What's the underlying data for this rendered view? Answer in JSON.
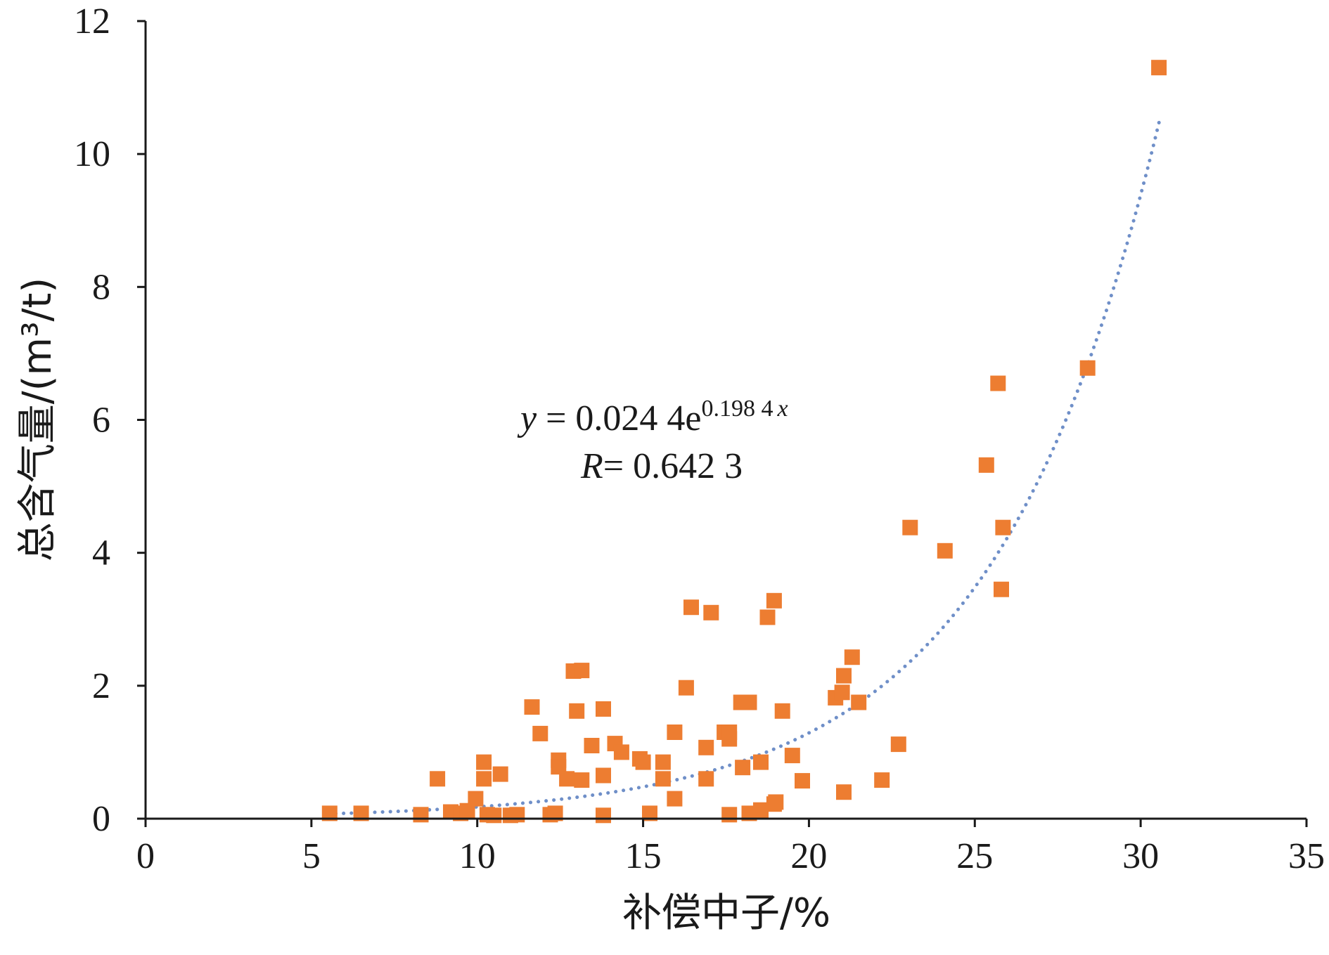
{
  "chart_data": {
    "type": "scatter",
    "xlabel": "补偿中子/%",
    "ylabel": "总含气量/(m³/t)",
    "xlim": [
      0,
      35
    ],
    "ylim": [
      0,
      12
    ],
    "xticks": [
      "0",
      "5",
      "10",
      "15",
      "20",
      "25",
      "30",
      "35"
    ],
    "yticks": [
      "0",
      "2",
      "4",
      "6",
      "8",
      "10",
      "12"
    ],
    "grid": false,
    "point_color": "#ED7D31",
    "trend_color": "#6F8FC8",
    "trendline": {
      "type": "exponential",
      "a": 0.0244,
      "b": 0.1984,
      "x_range": [
        5.5,
        30.6
      ]
    },
    "annotations": {
      "equation": {
        "y_var": "y",
        "eq_text": " = 0.024 4e",
        "exponent_num": "0.198 4",
        "exponent_var": "x"
      },
      "r_value": {
        "r_var": "R",
        "r_text": "= 0.642 3"
      }
    },
    "points": [
      [
        5.55,
        0.08
      ],
      [
        6.5,
        0.08
      ],
      [
        8.3,
        0.06
      ],
      [
        8.8,
        0.6
      ],
      [
        9.2,
        0.1
      ],
      [
        9.5,
        0.08
      ],
      [
        9.7,
        0.12
      ],
      [
        9.95,
        0.3
      ],
      [
        10.2,
        0.85
      ],
      [
        10.2,
        0.6
      ],
      [
        10.3,
        0.06
      ],
      [
        10.5,
        0.05
      ],
      [
        10.7,
        0.67
      ],
      [
        11.0,
        0.05
      ],
      [
        11.2,
        0.06
      ],
      [
        11.65,
        1.68
      ],
      [
        11.9,
        1.28
      ],
      [
        12.2,
        0.06
      ],
      [
        12.35,
        0.08
      ],
      [
        12.45,
        0.88
      ],
      [
        12.45,
        0.78
      ],
      [
        12.7,
        0.6
      ],
      [
        12.9,
        2.22
      ],
      [
        13.0,
        1.62
      ],
      [
        13.15,
        2.23
      ],
      [
        13.15,
        0.58
      ],
      [
        13.45,
        1.1
      ],
      [
        13.8,
        1.65
      ],
      [
        13.8,
        0.65
      ],
      [
        13.8,
        0.05
      ],
      [
        14.15,
        1.13
      ],
      [
        14.35,
        1.0
      ],
      [
        14.9,
        0.9
      ],
      [
        15.0,
        0.85
      ],
      [
        15.2,
        0.08
      ],
      [
        15.6,
        0.85
      ],
      [
        15.6,
        0.6
      ],
      [
        15.95,
        1.3
      ],
      [
        15.95,
        0.3
      ],
      [
        16.3,
        1.97
      ],
      [
        16.45,
        3.18
      ],
      [
        16.9,
        1.07
      ],
      [
        16.9,
        0.6
      ],
      [
        17.05,
        3.1
      ],
      [
        17.45,
        1.3
      ],
      [
        17.6,
        1.2
      ],
      [
        17.6,
        1.3
      ],
      [
        17.6,
        0.06
      ],
      [
        17.95,
        1.75
      ],
      [
        18.0,
        0.77
      ],
      [
        18.2,
        1.75
      ],
      [
        18.2,
        0.08
      ],
      [
        18.55,
        0.85
      ],
      [
        18.55,
        0.13
      ],
      [
        18.75,
        3.03
      ],
      [
        18.95,
        3.28
      ],
      [
        18.95,
        0.22
      ],
      [
        19.0,
        0.25
      ],
      [
        19.2,
        1.62
      ],
      [
        19.5,
        0.95
      ],
      [
        19.8,
        0.57
      ],
      [
        20.8,
        1.82
      ],
      [
        21.0,
        1.9
      ],
      [
        21.05,
        2.15
      ],
      [
        21.05,
        0.4
      ],
      [
        21.3,
        2.43
      ],
      [
        21.5,
        1.75
      ],
      [
        22.2,
        0.58
      ],
      [
        22.7,
        1.12
      ],
      [
        23.05,
        4.38
      ],
      [
        24.1,
        4.03
      ],
      [
        25.35,
        5.32
      ],
      [
        25.7,
        6.55
      ],
      [
        25.8,
        3.45
      ],
      [
        25.85,
        4.38
      ],
      [
        28.4,
        6.78
      ],
      [
        30.55,
        11.3
      ]
    ]
  }
}
